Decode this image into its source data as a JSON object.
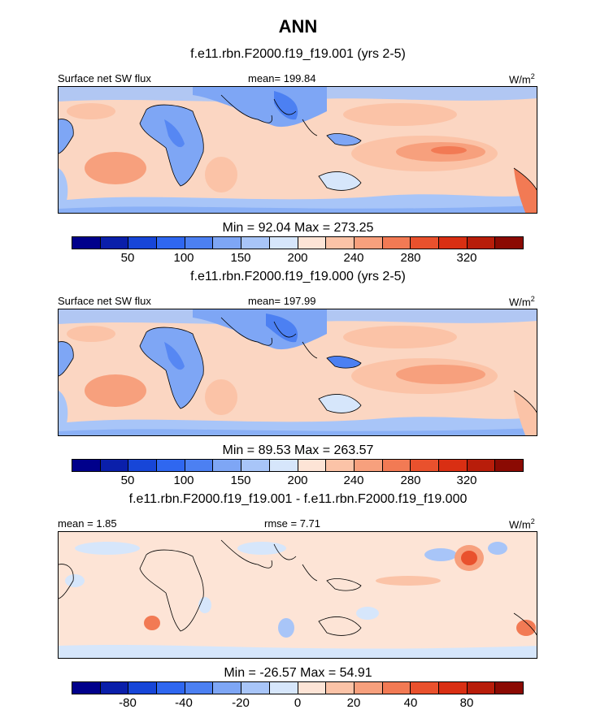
{
  "title": "ANN",
  "colors": {
    "abs_scale": [
      "#00008b",
      "#0a1faa",
      "#1746d8",
      "#2f67f0",
      "#4c80f2",
      "#7ea6f5",
      "#a8c5f8",
      "#d6e6fb",
      "#fde4d6",
      "#fbc3a7",
      "#f7a07d",
      "#f27a54",
      "#e9512d",
      "#d92f13",
      "#b81d0a",
      "#8b0a03"
    ],
    "diff_scale": [
      "#00008b",
      "#0a1faa",
      "#1746d8",
      "#2f67f0",
      "#4c80f2",
      "#7ea6f5",
      "#a8c5f8",
      "#d6e6fb",
      "#fde4d6",
      "#fbc3a7",
      "#f7a07d",
      "#f27a54",
      "#e9512d",
      "#d92f13",
      "#b81d0a",
      "#8b0a03"
    ],
    "coast": "#000000"
  },
  "panels": [
    {
      "heading": "f.e11.rbn.F2000.f19_f19.001 (yrs 2-5)",
      "left_label": "Surface net SW flux",
      "center_label": "mean= 199.84",
      "units_base": "W/m",
      "units_exp": "2",
      "minmax": "Min =  92.04 Max = 273.25",
      "ticks": [
        "50",
        "100",
        "150",
        "200",
        "240",
        "280",
        "320"
      ]
    },
    {
      "heading": "f.e11.rbn.F2000.f19_f19.000 (yrs 2-5)",
      "left_label": "Surface net SW flux",
      "center_label": "mean= 197.99",
      "units_base": "W/m",
      "units_exp": "2",
      "minmax": "Min =  89.53 Max = 263.57",
      "ticks": [
        "50",
        "100",
        "150",
        "200",
        "240",
        "280",
        "320"
      ]
    },
    {
      "heading": "f.e11.rbn.F2000.f19_f19.001 - f.e11.rbn.F2000.f19_f19.000",
      "left_label": "mean =   1.85",
      "center_label": "rmse =   7.71",
      "units_base": "W/m",
      "units_exp": "2",
      "minmax": "Min = -26.57 Max =  54.91",
      "ticks": [
        "-80",
        "-40",
        "-20",
        "0",
        "20",
        "40",
        "80"
      ]
    }
  ]
}
